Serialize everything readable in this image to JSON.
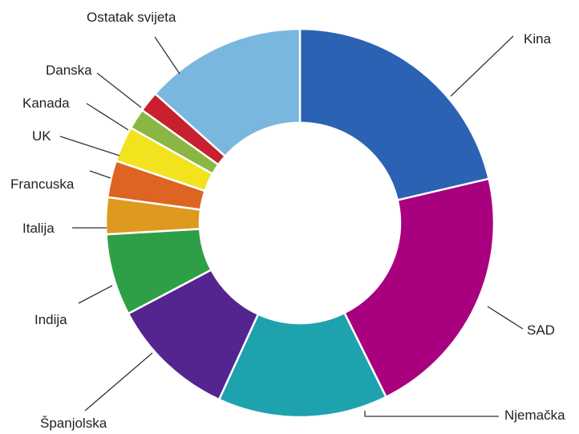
{
  "chart_data": {
    "type": "pie",
    "donut": true,
    "title": "",
    "categories": [
      "Kina",
      "SAD",
      "Njemačka",
      "Španjolska",
      "Indija",
      "Italija",
      "Francuska",
      "UK",
      "Kanada",
      "Danska",
      "Ostatak svijeta"
    ],
    "values": [
      22.3,
      22.3,
      14.8,
      10.9,
      7.1,
      3.2,
      3.2,
      3.1,
      1.8,
      1.8,
      14.0
    ],
    "colors": [
      "#2b62b4",
      "#a8007e",
      "#1ea2ad",
      "#55258f",
      "#2f9f47",
      "#de9a1f",
      "#dd6422",
      "#f2e31e",
      "#8ab644",
      "#c8202e",
      "#7ab7df"
    ],
    "legend": "none"
  }
}
